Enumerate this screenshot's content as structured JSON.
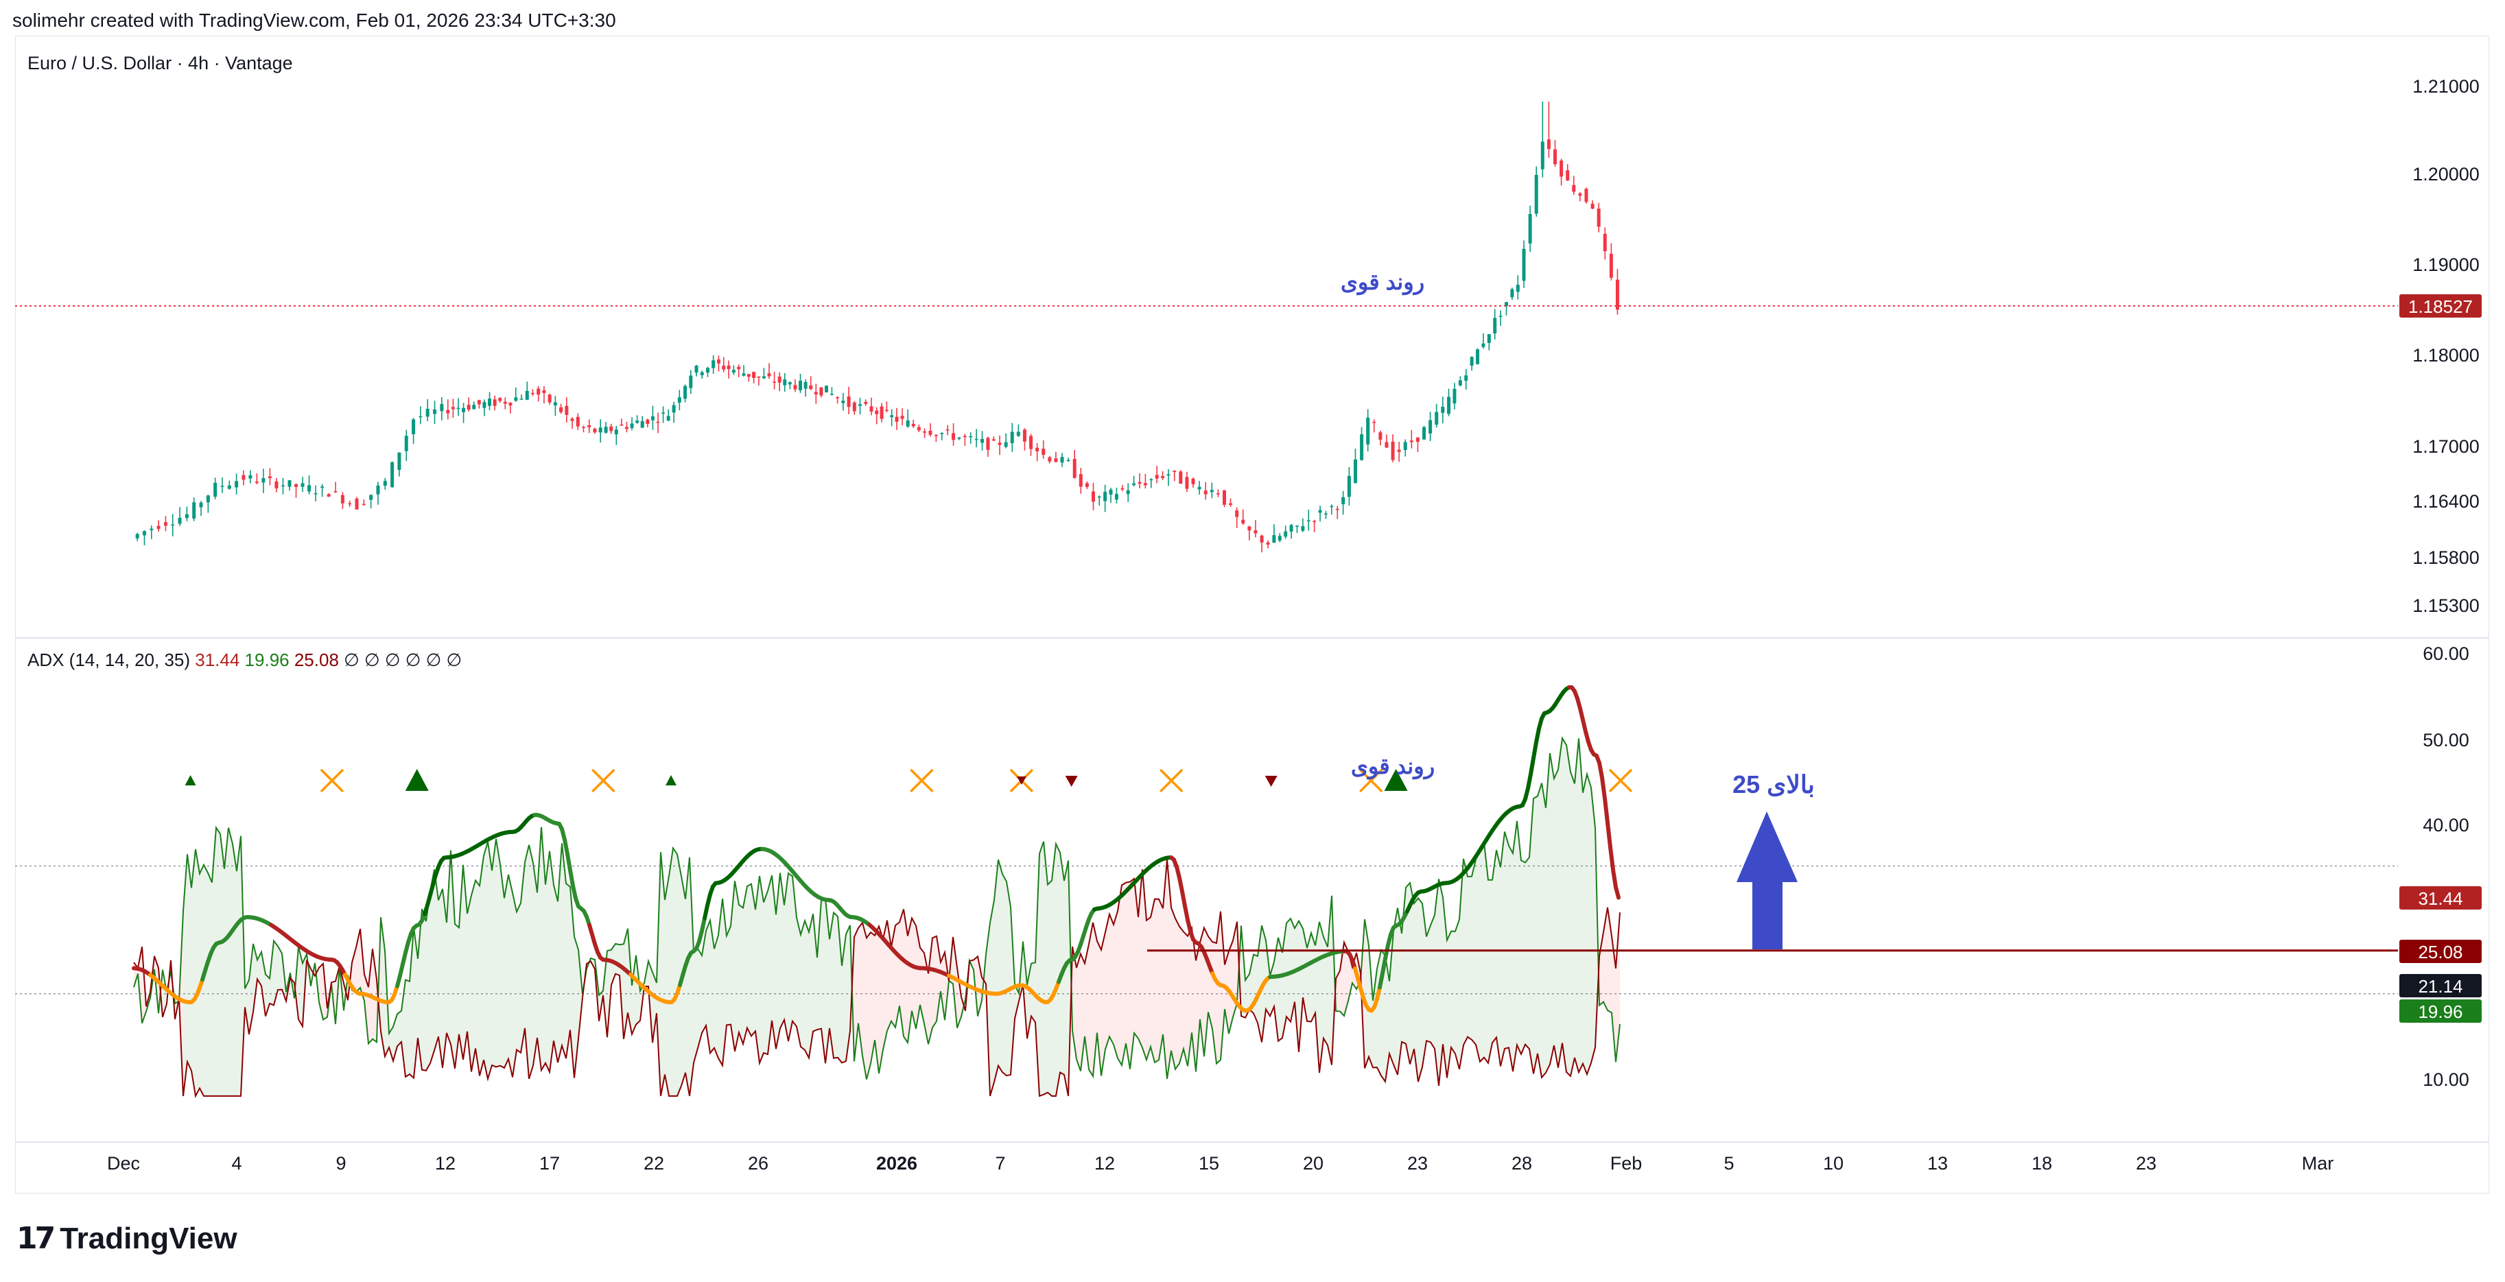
{
  "header": {
    "caption": "solimehr created with TradingView.com, Feb 01, 2026 23:34 UTC+3:30"
  },
  "branding": {
    "logo_text": "TradingView"
  },
  "colors": {
    "bull": "#089981",
    "bear": "#f23645",
    "adx_up": "#006400",
    "adx_up_soft": "#2e8b2e",
    "adx_down": "#b22222",
    "adx_low": "#ff9800",
    "di_plus": "#1b7f1b",
    "di_minus": "#8b0000",
    "annotation": "#3d4bc8",
    "threshold_line": "#8b0000"
  },
  "chart_data": [
    {
      "type": "candlestick",
      "title": "Euro / U.S. Dollar · 4h · Vantage",
      "y_ticks": [
        "1.21000",
        "1.20000",
        "1.19000",
        "1.18000",
        "1.17000",
        "1.16400",
        "1.15800",
        "1.15300"
      ],
      "ylim": [
        1.148,
        1.214
      ],
      "last_price": "1.18527",
      "annotations": [
        "روند قوی"
      ],
      "close_path": [
        {
          "d": "Dec 1",
          "c": 1.16
        },
        {
          "d": "Dec 2",
          "c": 1.1615
        },
        {
          "d": "Dec 3",
          "c": 1.1625
        },
        {
          "d": "Dec 4",
          "c": 1.1655
        },
        {
          "d": "Dec 5",
          "c": 1.1665
        },
        {
          "d": "Dec 8",
          "c": 1.165
        },
        {
          "d": "Dec 9",
          "c": 1.1635
        },
        {
          "d": "Dec 10",
          "c": 1.166
        },
        {
          "d": "Dec 11",
          "c": 1.173
        },
        {
          "d": "Dec 12",
          "c": 1.174
        },
        {
          "d": "Dec 15",
          "c": 1.175
        },
        {
          "d": "Dec 16",
          "c": 1.176
        },
        {
          "d": "Dec 17",
          "c": 1.1745
        },
        {
          "d": "Dec 18",
          "c": 1.172
        },
        {
          "d": "Dec 19",
          "c": 1.1715
        },
        {
          "d": "Dec 22",
          "c": 1.1735
        },
        {
          "d": "Dec 23",
          "c": 1.178
        },
        {
          "d": "Dec 24",
          "c": 1.179
        },
        {
          "d": "Dec 26",
          "c": 1.1775
        },
        {
          "d": "Dec 29",
          "c": 1.176
        },
        {
          "d": "Dec 30",
          "c": 1.1745
        },
        {
          "d": "Dec 31",
          "c": 1.174
        },
        {
          "d": "Jan 2",
          "c": 1.172
        },
        {
          "d": "Jan 5",
          "c": 1.17
        },
        {
          "d": "Jan 6",
          "c": 1.1715
        },
        {
          "d": "Jan 7",
          "c": 1.169
        },
        {
          "d": "Jan 8",
          "c": 1.168
        },
        {
          "d": "Jan 9",
          "c": 1.164
        },
        {
          "d": "Jan 12",
          "c": 1.167
        },
        {
          "d": "Jan 13",
          "c": 1.1655
        },
        {
          "d": "Jan 14",
          "c": 1.165
        },
        {
          "d": "Jan 15",
          "c": 1.161
        },
        {
          "d": "Jan 16",
          "c": 1.1595
        },
        {
          "d": "Jan 19",
          "c": 1.164
        },
        {
          "d": "Jan 20",
          "c": 1.173
        },
        {
          "d": "Jan 21",
          "c": 1.169
        },
        {
          "d": "Jan 22",
          "c": 1.171
        },
        {
          "d": "Jan 23",
          "c": 1.174
        },
        {
          "d": "Jan 26",
          "c": 1.188
        },
        {
          "d": "Jan 27",
          "c": 1.204
        },
        {
          "d": "Jan 28",
          "c": 1.199
        },
        {
          "d": "Jan 29",
          "c": 1.1965
        },
        {
          "d": "Jan 30",
          "c": 1.1853
        }
      ]
    },
    {
      "type": "line",
      "title": "ADX",
      "params": "(14, 14, 20, 35)",
      "values_display": [
        {
          "value": "31.44",
          "color": "#b22222"
        },
        {
          "value": "19.96",
          "color": "#1b7f1b"
        },
        {
          "value": "25.08",
          "color": "#8b0000"
        }
      ],
      "placeholders": [
        "∅",
        "∅",
        "∅",
        "∅",
        "∅",
        "∅"
      ],
      "y_ticks": [
        "60.00",
        "50.00",
        "40.00",
        "10.00"
      ],
      "ylim": [
        4,
        62
      ],
      "levels": [
        35,
        20
      ],
      "threshold": 25.08,
      "badges": [
        {
          "value": "31.44",
          "color": "#b22222"
        },
        {
          "value": "25.08",
          "color": "#8b0000"
        },
        {
          "value": "21.14",
          "color": "#131722"
        },
        {
          "value": "19.96",
          "color": "#1b7f1b"
        }
      ],
      "annotations": [
        "روند قوی",
        "بالای 25"
      ],
      "adx": [
        {
          "d": "Dec 1",
          "v": 23
        },
        {
          "d": "Dec 3",
          "v": 19
        },
        {
          "d": "Dec 4",
          "v": 26
        },
        {
          "d": "Dec 5",
          "v": 29
        },
        {
          "d": "Dec 8",
          "v": 24
        },
        {
          "d": "Dec 9",
          "v": 20
        },
        {
          "d": "Dec 10",
          "v": 19
        },
        {
          "d": "Dec 11",
          "v": 28
        },
        {
          "d": "Dec 12",
          "v": 36
        },
        {
          "d": "Dec 15",
          "v": 39
        },
        {
          "d": "Dec 16",
          "v": 41
        },
        {
          "d": "Dec 17",
          "v": 40
        },
        {
          "d": "Dec 18",
          "v": 30
        },
        {
          "d": "Dec 19",
          "v": 24
        },
        {
          "d": "Dec 22",
          "v": 19
        },
        {
          "d": "Dec 23",
          "v": 25
        },
        {
          "d": "Dec 24",
          "v": 33
        },
        {
          "d": "Dec 26",
          "v": 37
        },
        {
          "d": "Dec 29",
          "v": 31
        },
        {
          "d": "Dec 30",
          "v": 29
        },
        {
          "d": "Jan 2",
          "v": 23
        },
        {
          "d": "Jan 5",
          "v": 20
        },
        {
          "d": "Jan 6",
          "v": 21
        },
        {
          "d": "Jan 7",
          "v": 19
        },
        {
          "d": "Jan 8",
          "v": 24
        },
        {
          "d": "Jan 9",
          "v": 30
        },
        {
          "d": "Jan 12",
          "v": 36
        },
        {
          "d": "Jan 13",
          "v": 26
        },
        {
          "d": "Jan 14",
          "v": 21
        },
        {
          "d": "Jan 15",
          "v": 18
        },
        {
          "d": "Jan 16",
          "v": 22
        },
        {
          "d": "Jan 19",
          "v": 25
        },
        {
          "d": "Jan 20",
          "v": 18
        },
        {
          "d": "Jan 21",
          "v": 28
        },
        {
          "d": "Jan 22",
          "v": 32
        },
        {
          "d": "Jan 23",
          "v": 33
        },
        {
          "d": "Jan 26",
          "v": 42
        },
        {
          "d": "Jan 27",
          "v": 53
        },
        {
          "d": "Jan 28",
          "v": 56
        },
        {
          "d": "Jan 29",
          "v": 48
        },
        {
          "d": "Jan 30",
          "v": 31
        }
      ],
      "signals": [
        {
          "d": "Dec 3",
          "kind": "up-small"
        },
        {
          "d": "Dec 8",
          "kind": "cross"
        },
        {
          "d": "Dec 11",
          "kind": "up-large"
        },
        {
          "d": "Dec 19",
          "kind": "cross"
        },
        {
          "d": "Dec 22",
          "kind": "up-small"
        },
        {
          "d": "Jan 2",
          "kind": "cross"
        },
        {
          "d": "Jan 6",
          "kind": "cross-down"
        },
        {
          "d": "Jan 8",
          "kind": "down"
        },
        {
          "d": "Jan 12",
          "kind": "cross"
        },
        {
          "d": "Jan 16",
          "kind": "down"
        },
        {
          "d": "Jan 20",
          "kind": "cross"
        },
        {
          "d": "Jan 21",
          "kind": "up-large"
        },
        {
          "d": "Jan 30",
          "kind": "cross"
        }
      ]
    }
  ],
  "x_axis": {
    "labels": [
      {
        "text": "Dec",
        "bold": false
      },
      {
        "text": "4",
        "bold": false
      },
      {
        "text": "9",
        "bold": false
      },
      {
        "text": "12",
        "bold": false
      },
      {
        "text": "17",
        "bold": false
      },
      {
        "text": "22",
        "bold": false
      },
      {
        "text": "26",
        "bold": false
      },
      {
        "text": "2026",
        "bold": true
      },
      {
        "text": "7",
        "bold": false
      },
      {
        "text": "12",
        "bold": false
      },
      {
        "text": "15",
        "bold": false
      },
      {
        "text": "20",
        "bold": false
      },
      {
        "text": "23",
        "bold": false
      },
      {
        "text": "28",
        "bold": false
      },
      {
        "text": "Feb",
        "bold": false
      },
      {
        "text": "5",
        "bold": false
      },
      {
        "text": "10",
        "bold": false
      },
      {
        "text": "13",
        "bold": false
      },
      {
        "text": "18",
        "bold": false
      },
      {
        "text": "23",
        "bold": false
      },
      {
        "text": "Mar",
        "bold": false
      }
    ]
  }
}
